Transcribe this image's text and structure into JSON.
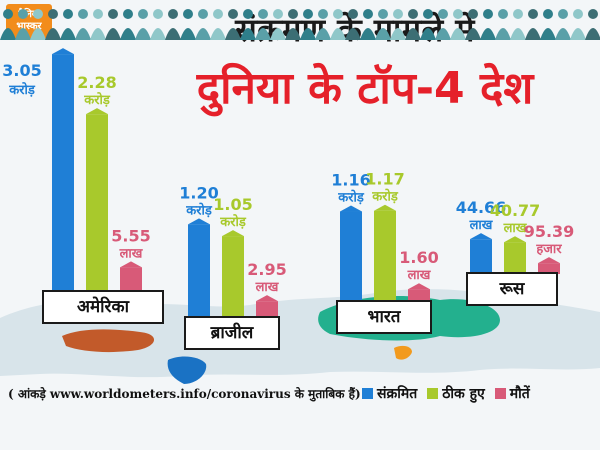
{
  "logo": {
    "line1": "दैनिक",
    "line2": "भास्कर"
  },
  "title": {
    "line1": "संक्रमण के मामले में",
    "line2": "दुनिया के टॉप-4 देश"
  },
  "source": "( आंकड़े www.worldometers.info/coronavirus के मुताबिक हैं)",
  "legend": [
    {
      "label": "संक्रमित",
      "color": "#1f7fd6"
    },
    {
      "label": "ठीक हुए",
      "color": "#a8c92c"
    },
    {
      "label": "मौतें",
      "color": "#d85a78"
    }
  ],
  "chart_data": {
    "type": "bar",
    "categories": [
      "अमेरिका",
      "ब्राजील",
      "भारत",
      "रूस"
    ],
    "series": [
      {
        "name": "संक्रमित",
        "color": "#1f7fd6",
        "values": [
          3.05,
          1.2,
          1.16,
          44.66
        ],
        "labels": [
          [
            "3.05",
            "करोड़"
          ],
          [
            "1.20",
            "करोड़"
          ],
          [
            "1.16",
            "करोड़"
          ],
          [
            "44.66",
            "लाख"
          ]
        ]
      },
      {
        "name": "ठीक हुए",
        "color": "#a8c92c",
        "values": [
          2.28,
          1.05,
          1.17,
          40.77
        ],
        "labels": [
          [
            "2.28",
            "करोड़"
          ],
          [
            "1.05",
            "करोड़"
          ],
          [
            "1.17",
            "करोड़"
          ],
          [
            "40.77",
            "लाख"
          ]
        ]
      },
      {
        "name": "मौतें",
        "color": "#d85a78",
        "values": [
          5.55,
          2.95,
          1.6,
          95.39
        ],
        "labels": [
          [
            "5.55",
            "लाख"
          ],
          [
            "2.95",
            "लाख"
          ],
          [
            "1.60",
            "लाख"
          ],
          [
            "95.39",
            "हजार"
          ]
        ]
      }
    ]
  }
}
